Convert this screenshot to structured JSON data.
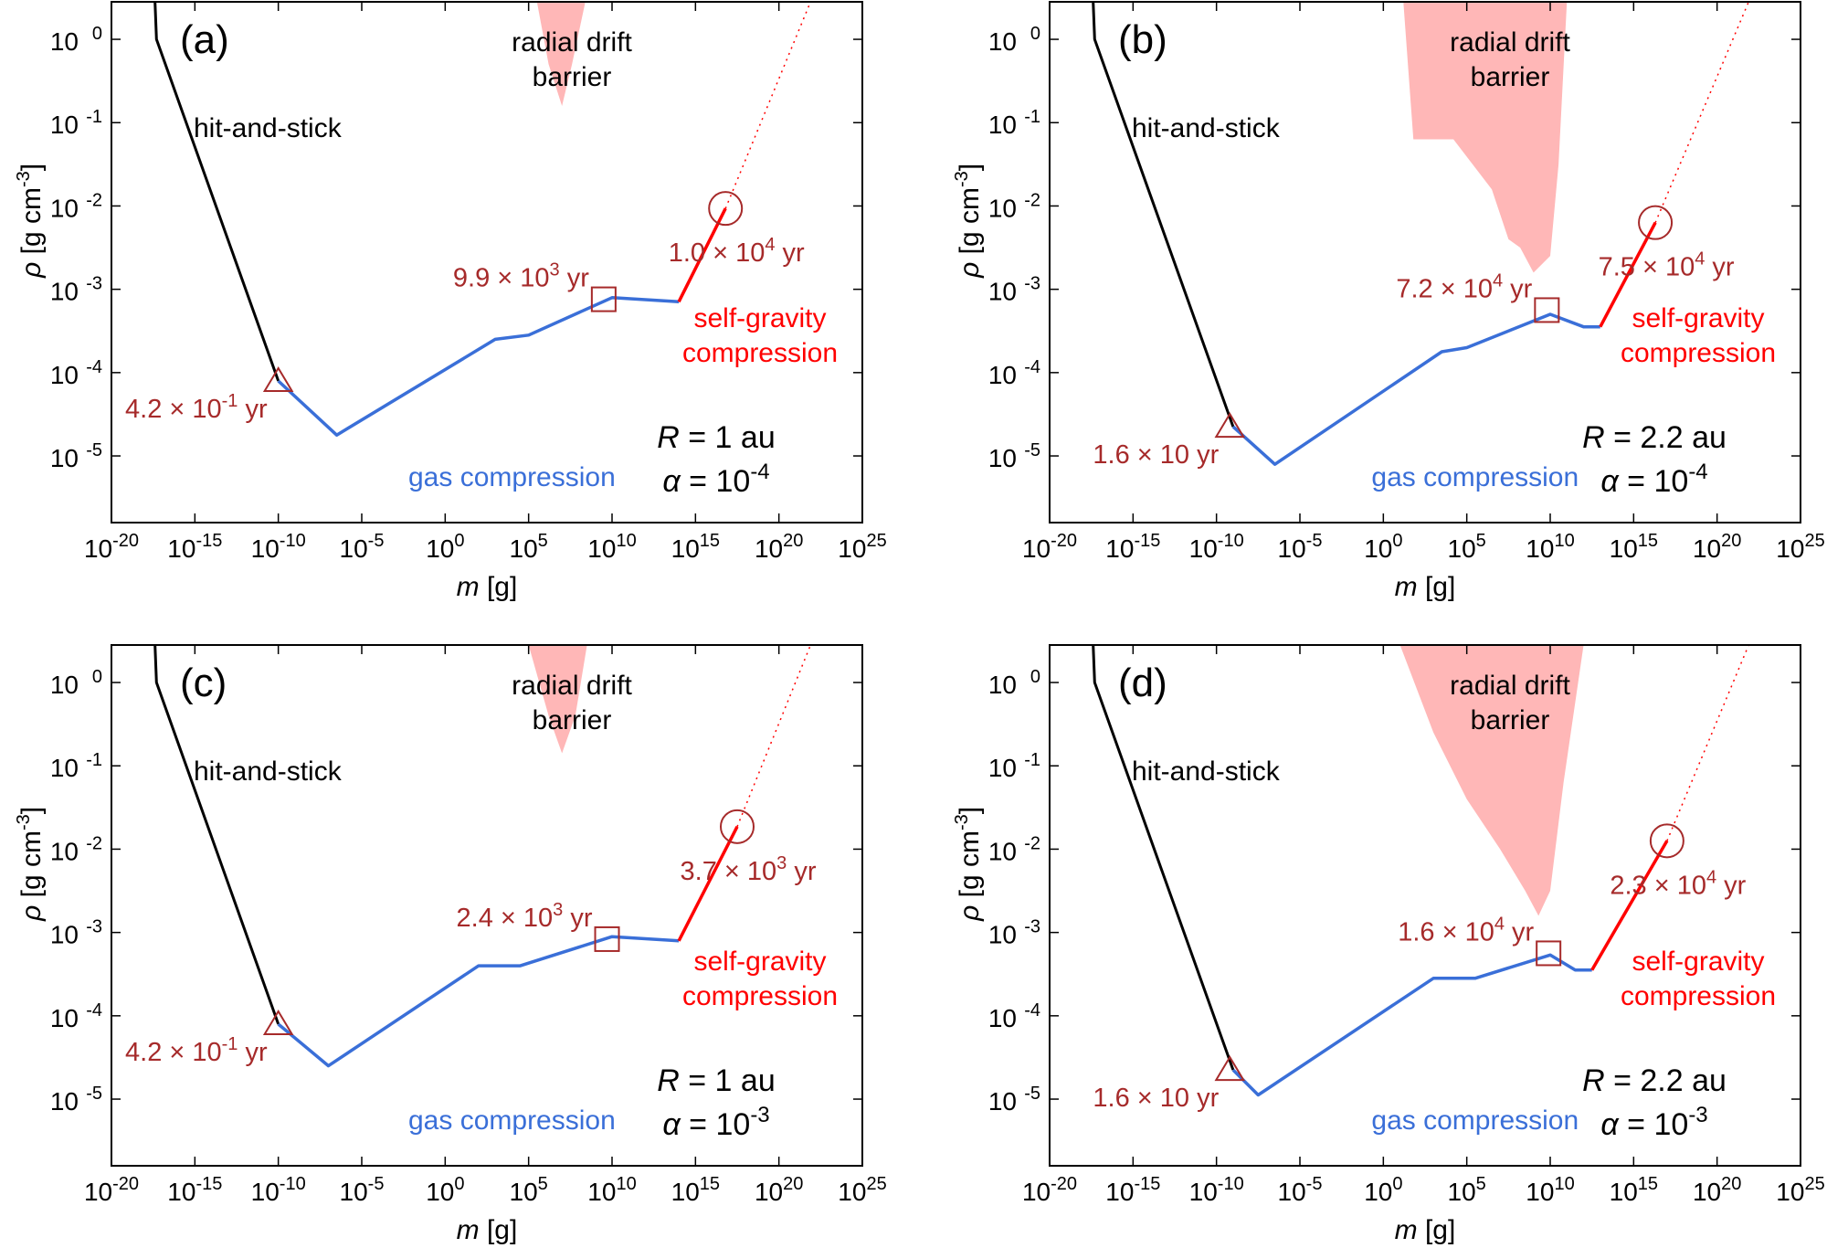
{
  "colors": {
    "hit_and_stick": "#000000",
    "gas_compression": "#3a6fd8",
    "self_gravity": "#ff0000",
    "marker": "#a62a2a",
    "drift_barrier": "#ffb7b7"
  },
  "shared": {
    "xlabel_var": "m",
    "xlabel_unit": " [g]",
    "ylabel_var": "ρ",
    "ylabel_unit": " [g cm",
    "ylabel_exp": "-3",
    "ylabel_close": "]",
    "x_ticks": [
      {
        "value": -20,
        "base": "10",
        "exp": "-20"
      },
      {
        "value": -15,
        "base": "10",
        "exp": "-15"
      },
      {
        "value": -10,
        "base": "10",
        "exp": "-10"
      },
      {
        "value": -5,
        "base": "10",
        "exp": "-5"
      },
      {
        "value": 0,
        "base": "10",
        "exp": "0"
      },
      {
        "value": 5,
        "base": "10",
        "exp": "5"
      },
      {
        "value": 10,
        "base": "10",
        "exp": "10"
      },
      {
        "value": 15,
        "base": "10",
        "exp": "15"
      },
      {
        "value": 20,
        "base": "10",
        "exp": "20"
      },
      {
        "value": 25,
        "base": "10",
        "exp": "25"
      }
    ],
    "y_ticks": [
      {
        "value": 0,
        "base": "10",
        "exp": "0"
      },
      {
        "value": -1,
        "base": "10",
        "exp": "-1"
      },
      {
        "value": -2,
        "base": "10",
        "exp": "-2"
      },
      {
        "value": -3,
        "base": "10",
        "exp": "-3"
      },
      {
        "value": -4,
        "base": "10",
        "exp": "-4"
      },
      {
        "value": -5,
        "base": "10",
        "exp": "-5"
      }
    ],
    "labels": {
      "hit_and_stick": "hit-and-stick",
      "gas_compression": "gas compression",
      "self_gravity_1": "self-gravity",
      "self_gravity_2": "compression",
      "drift_1": "radial drift",
      "drift_2": "barrier"
    }
  },
  "chart_data": [
    {
      "type": "line",
      "panel": "(a)",
      "R_label": "R",
      "R_value": " = 1 au",
      "alpha_label": "α",
      "alpha_value": " = 10",
      "alpha_exp": "-4",
      "xscale": "log",
      "yscale": "log",
      "xlim_log10": [
        -20,
        25
      ],
      "ylim_log10": [
        -5.8,
        0.45
      ],
      "xlabel": "m [g]",
      "ylabel": "ρ [g cm^-3]",
      "series": [
        {
          "name": "hit-and-stick",
          "log_x": [
            -17.4,
            -17.3,
            -10.0
          ],
          "log_y": [
            0.5,
            0.0,
            -4.1
          ]
        },
        {
          "name": "gas compression",
          "log_x": [
            -10.0,
            -6.5,
            3.0,
            5.0,
            10.0,
            14.0
          ],
          "log_y": [
            -4.1,
            -4.75,
            -3.6,
            -3.55,
            -3.1,
            -3.15
          ]
        },
        {
          "name": "self-gravity compression",
          "log_x": [
            14.0,
            16.8
          ],
          "log_y": [
            -3.15,
            -2.03
          ]
        },
        {
          "name": "extrapolation",
          "style": "dotted",
          "log_x": [
            16.8,
            22.0
          ],
          "log_y": [
            -2.03,
            0.5
          ]
        }
      ],
      "markers": [
        {
          "shape": "triangle",
          "log_x": -10.0,
          "log_y": -4.1,
          "label_base": "4.2 × 10",
          "label_exp": "-1",
          "label_unit": " yr"
        },
        {
          "shape": "square",
          "log_x": 9.5,
          "log_y": -3.12,
          "label_base": "9.9 × 10",
          "label_exp": "3",
          "label_unit": " yr"
        },
        {
          "shape": "circle",
          "log_x": 16.8,
          "log_y": -2.03,
          "label_base": "1.0 × 10",
          "label_exp": "4",
          "label_unit": " yr"
        }
      ],
      "drift_barrier": {
        "log_x": [
          5.5,
          6.2,
          7.0,
          7.6,
          8.4
        ],
        "log_y_bottom": [
          0.45,
          -0.3,
          -0.8,
          -0.3,
          0.45
        ]
      }
    },
    {
      "type": "line",
      "panel": "(b)",
      "R_label": "R",
      "R_value": " = 2.2 au",
      "alpha_label": "α",
      "alpha_value": " = 10",
      "alpha_exp": "-4",
      "xscale": "log",
      "yscale": "log",
      "xlim_log10": [
        -20,
        25
      ],
      "ylim_log10": [
        -5.8,
        0.45
      ],
      "xlabel": "m [g]",
      "ylabel": "ρ [g cm^-3]",
      "series": [
        {
          "name": "hit-and-stick",
          "log_x": [
            -17.4,
            -17.3,
            -9.0
          ],
          "log_y": [
            0.5,
            0.0,
            -4.65
          ]
        },
        {
          "name": "gas compression",
          "log_x": [
            -9.0,
            -6.5,
            3.5,
            5.0,
            10.0,
            12.0,
            13.0
          ],
          "log_y": [
            -4.65,
            -5.1,
            -3.75,
            -3.7,
            -3.3,
            -3.45,
            -3.45
          ]
        },
        {
          "name": "self-gravity compression",
          "log_x": [
            13.0,
            16.3
          ],
          "log_y": [
            -3.45,
            -2.2
          ]
        },
        {
          "name": "extrapolation",
          "style": "dotted",
          "log_x": [
            16.3,
            22.0
          ],
          "log_y": [
            -2.2,
            0.5
          ]
        }
      ],
      "markers": [
        {
          "shape": "triangle",
          "log_x": -9.2,
          "log_y": -4.65,
          "label_base": "1.6 × 10",
          "label_exp": "",
          "label_unit": " yr"
        },
        {
          "shape": "square",
          "log_x": 9.8,
          "log_y": -3.25,
          "label_base": "7.2 × 10",
          "label_exp": "4",
          "label_unit": " yr"
        },
        {
          "shape": "circle",
          "log_x": 16.3,
          "log_y": -2.2,
          "label_base": "7.5 × 10",
          "label_exp": "4",
          "label_unit": " yr"
        }
      ],
      "drift_barrier": {
        "log_x": [
          0.2,
          1.2,
          1.8,
          3.0,
          4.2,
          6.5,
          7.5,
          8.2,
          9.0,
          10.0,
          10.5,
          11.0
        ],
        "log_y_bottom": [
          0.45,
          0.45,
          -1.2,
          -1.2,
          -1.2,
          -1.8,
          -2.4,
          -2.5,
          -2.8,
          -2.6,
          -1.5,
          0.45
        ]
      }
    },
    {
      "type": "line",
      "panel": "(c)",
      "R_label": "R",
      "R_value": " = 1 au",
      "alpha_label": "α",
      "alpha_value": " = 10",
      "alpha_exp": "-3",
      "xscale": "log",
      "yscale": "log",
      "xlim_log10": [
        -20,
        25
      ],
      "ylim_log10": [
        -5.8,
        0.45
      ],
      "xlabel": "m [g]",
      "ylabel": "ρ [g cm^-3]",
      "series": [
        {
          "name": "hit-and-stick",
          "log_x": [
            -17.4,
            -17.3,
            -10.0
          ],
          "log_y": [
            0.5,
            0.0,
            -4.1
          ]
        },
        {
          "name": "gas compression",
          "log_x": [
            -10.0,
            -7.0,
            2.0,
            4.5,
            10.0,
            14.0
          ],
          "log_y": [
            -4.1,
            -4.6,
            -3.4,
            -3.4,
            -3.05,
            -3.1
          ]
        },
        {
          "name": "self-gravity compression",
          "log_x": [
            14.0,
            17.5
          ],
          "log_y": [
            -3.1,
            -1.73
          ]
        },
        {
          "name": "extrapolation",
          "style": "dotted",
          "log_x": [
            17.5,
            22.0
          ],
          "log_y": [
            -1.73,
            0.5
          ]
        }
      ],
      "markers": [
        {
          "shape": "triangle",
          "log_x": -10.0,
          "log_y": -4.1,
          "label_base": "4.2 × 10",
          "label_exp": "-1",
          "label_unit": " yr"
        },
        {
          "shape": "square",
          "log_x": 9.7,
          "log_y": -3.08,
          "label_base": "2.4 × 10",
          "label_exp": "3",
          "label_unit": " yr"
        },
        {
          "shape": "circle",
          "log_x": 17.5,
          "log_y": -1.73,
          "label_base": "3.7 × 10",
          "label_exp": "3",
          "label_unit": " yr"
        }
      ],
      "drift_barrier": {
        "log_x": [
          5.0,
          6.2,
          7.0,
          7.8,
          8.5
        ],
        "log_y_bottom": [
          0.45,
          -0.4,
          -0.85,
          -0.4,
          0.45
        ]
      }
    },
    {
      "type": "line",
      "panel": "(d)",
      "R_label": "R",
      "R_value": " = 2.2 au",
      "alpha_label": "α",
      "alpha_value": " = 10",
      "alpha_exp": "-3",
      "xscale": "log",
      "yscale": "log",
      "xlim_log10": [
        -20,
        25
      ],
      "ylim_log10": [
        -5.8,
        0.45
      ],
      "xlabel": "m [g]",
      "ylabel": "ρ [g cm^-3]",
      "series": [
        {
          "name": "hit-and-stick",
          "log_x": [
            -17.4,
            -17.3,
            -9.0
          ],
          "log_y": [
            0.5,
            0.0,
            -4.65
          ]
        },
        {
          "name": "gas compression",
          "log_x": [
            -9.0,
            -7.5,
            3.0,
            5.5,
            10.0,
            11.5,
            12.5
          ],
          "log_y": [
            -4.65,
            -4.95,
            -3.55,
            -3.55,
            -3.27,
            -3.45,
            -3.45
          ]
        },
        {
          "name": "self-gravity compression",
          "log_x": [
            12.5,
            17.0
          ],
          "log_y": [
            -3.45,
            -1.9
          ]
        },
        {
          "name": "extrapolation",
          "style": "dotted",
          "log_x": [
            17.0,
            22.0
          ],
          "log_y": [
            -1.9,
            0.5
          ]
        }
      ],
      "markers": [
        {
          "shape": "triangle",
          "log_x": -9.2,
          "log_y": -4.65,
          "label_base": "1.6 × 10",
          "label_exp": "",
          "label_unit": " yr"
        },
        {
          "shape": "square",
          "log_x": 9.9,
          "log_y": -3.25,
          "label_base": "1.6 × 10",
          "label_exp": "4",
          "label_unit": " yr"
        },
        {
          "shape": "circle",
          "log_x": 17.0,
          "log_y": -1.9,
          "label_base": "2.3 × 10",
          "label_exp": "4",
          "label_unit": " yr"
        }
      ],
      "drift_barrier": {
        "log_x": [
          1.0,
          3.0,
          5.0,
          7.0,
          8.5,
          9.3,
          10.0,
          10.8,
          12.0
        ],
        "log_y_bottom": [
          0.45,
          -0.6,
          -1.4,
          -2.0,
          -2.5,
          -2.8,
          -2.5,
          -1.2,
          0.45
        ]
      }
    }
  ]
}
